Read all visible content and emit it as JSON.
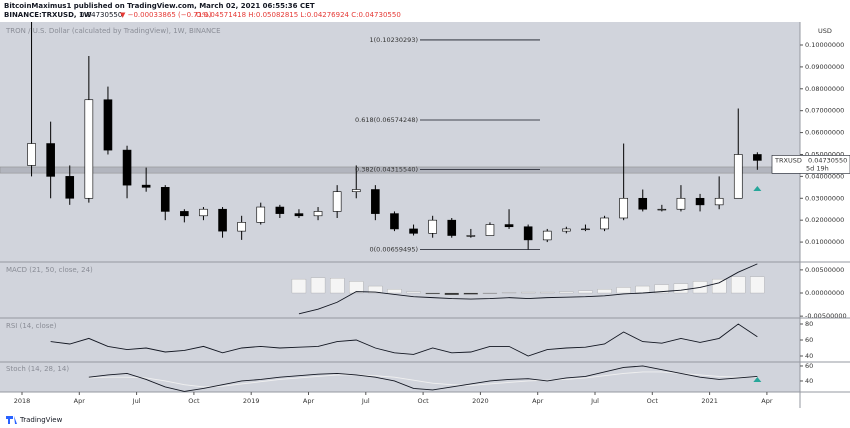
{
  "header": {
    "publisher": "BitcoinMaximus1 published on TradingView.com, March 02, 2021 06:55:36 CET",
    "symbol": "BINANCE:TRXUSD, 1W",
    "last": "0.04730550",
    "change": "▼ −0.00033865 (−0.71%)",
    "ohlc": "O:0.04571418 H:0.05082815 L:0.04276924 C:0.04730550",
    "brand": "TradingView"
  },
  "chart_data": [
    {
      "type": "candlestick",
      "title": "TRON / U.S. Dollar (calculated by TradingView), 1W, BINANCE",
      "y_unit": "USD",
      "x": [
        "2018-01",
        "2018-02",
        "2018-03",
        "2018-04",
        "2018-05",
        "2018-06",
        "2018-07",
        "2018-08",
        "2018-09",
        "2018-10",
        "2018-11",
        "2018-12",
        "2019-01",
        "2019-02",
        "2019-03",
        "2019-04",
        "2019-05",
        "2019-06",
        "2019-07",
        "2019-08",
        "2019-09",
        "2019-10",
        "2019-11",
        "2019-12",
        "2020-01",
        "2020-02",
        "2020-03",
        "2020-04",
        "2020-05",
        "2020-06",
        "2020-07",
        "2020-08",
        "2020-09",
        "2020-10",
        "2020-11",
        "2020-12",
        "2021-01",
        "2021-02",
        "2021-03"
      ],
      "open": [
        0.045,
        0.055,
        0.04,
        0.03,
        0.075,
        0.052,
        0.036,
        0.035,
        0.024,
        0.022,
        0.025,
        0.015,
        0.019,
        0.026,
        0.023,
        0.022,
        0.024,
        0.033,
        0.034,
        0.023,
        0.016,
        0.014,
        0.02,
        0.013,
        0.013,
        0.018,
        0.017,
        0.011,
        0.015,
        0.016,
        0.016,
        0.021,
        0.03,
        0.025,
        0.025,
        0.03,
        0.027,
        0.03,
        0.05
      ],
      "high": [
        0.3,
        0.065,
        0.045,
        0.095,
        0.081,
        0.054,
        0.044,
        0.036,
        0.025,
        0.026,
        0.026,
        0.022,
        0.028,
        0.027,
        0.025,
        0.026,
        0.036,
        0.045,
        0.036,
        0.024,
        0.018,
        0.022,
        0.021,
        0.016,
        0.019,
        0.025,
        0.018,
        0.016,
        0.017,
        0.018,
        0.022,
        0.055,
        0.034,
        0.027,
        0.036,
        0.032,
        0.04,
        0.071,
        0.051
      ],
      "low": [
        0.04,
        0.03,
        0.027,
        0.028,
        0.05,
        0.03,
        0.033,
        0.02,
        0.019,
        0.02,
        0.012,
        0.011,
        0.018,
        0.021,
        0.021,
        0.02,
        0.021,
        0.03,
        0.02,
        0.015,
        0.013,
        0.012,
        0.012,
        0.012,
        0.013,
        0.016,
        0.0066,
        0.01,
        0.014,
        0.015,
        0.015,
        0.02,
        0.024,
        0.024,
        0.024,
        0.024,
        0.025,
        0.03,
        0.043
      ],
      "close": [
        0.055,
        0.04,
        0.03,
        0.075,
        0.052,
        0.036,
        0.035,
        0.024,
        0.022,
        0.025,
        0.015,
        0.019,
        0.026,
        0.023,
        0.022,
        0.024,
        0.033,
        0.034,
        0.023,
        0.016,
        0.014,
        0.02,
        0.013,
        0.013,
        0.018,
        0.017,
        0.011,
        0.015,
        0.016,
        0.016,
        0.021,
        0.03,
        0.025,
        0.025,
        0.03,
        0.027,
        0.03,
        0.05,
        0.0473
      ],
      "up_color": "#ffffff",
      "down_color": "#000000",
      "ylim": [
        0.0009,
        0.1105
      ],
      "yticks": [
        {
          "value": 0.01,
          "label": "0.01000000"
        },
        {
          "value": 0.02,
          "label": "0.02000000"
        },
        {
          "value": 0.03,
          "label": "0.03000000"
        },
        {
          "value": 0.04,
          "label": "0.04000000"
        },
        {
          "value": 0.05,
          "label": "0.05000000"
        },
        {
          "value": 0.06,
          "label": "0.06000000"
        },
        {
          "value": 0.07,
          "label": "0.07000000"
        },
        {
          "value": 0.08,
          "label": "0.08000000"
        },
        {
          "value": 0.09,
          "label": "0.09000000"
        },
        {
          "value": 0.1,
          "label": "0.10000000"
        }
      ],
      "xticks": [
        {
          "value": "2018-01",
          "label": "2018"
        },
        {
          "value": "2018-04",
          "label": "Apr"
        },
        {
          "value": "2018-07",
          "label": "Jul"
        },
        {
          "value": "2018-10",
          "label": "Oct"
        },
        {
          "value": "2019-01",
          "label": "2019"
        },
        {
          "value": "2019-04",
          "label": "Apr"
        },
        {
          "value": "2019-07",
          "label": "Jul"
        },
        {
          "value": "2019-10",
          "label": "Oct"
        },
        {
          "value": "2020-01",
          "label": "2020"
        },
        {
          "value": "2020-04",
          "label": "Apr"
        },
        {
          "value": "2020-07",
          "label": "Jul"
        },
        {
          "value": "2020-10",
          "label": "Oct"
        },
        {
          "value": "2021-01",
          "label": "2021"
        },
        {
          "value": "2021-04",
          "label": "Apr"
        }
      ],
      "fib_levels": [
        {
          "value": 0.10230293,
          "label": "1(0.10230293)"
        },
        {
          "value": 0.06574248,
          "label": "0.618(0.06574248)"
        },
        {
          "value": 0.0431554,
          "label": "0.382(0.04315540)"
        },
        {
          "value": 0.00659495,
          "label": "0(0.00659495)"
        }
      ],
      "support_zone": [
        0.0415,
        0.0443
      ],
      "last_price_label": "TRXUSD",
      "last_price": {
        "value": 0.0473055,
        "label": "0.04730550"
      },
      "countdown": "5d 19h"
    },
    {
      "type": "macd",
      "title": "MACD (21, 50, close, 24)",
      "histogram": [
        null,
        null,
        null,
        null,
        null,
        null,
        null,
        null,
        null,
        null,
        null,
        null,
        null,
        null,
        0.003,
        0.0033,
        0.0032,
        0.0025,
        0.0015,
        0.0008,
        0.0003,
        -0.0002,
        -0.0004,
        -0.0003,
        -0.0001,
        0.0001,
        0.0002,
        0.0002,
        0.0003,
        0.0005,
        0.0008,
        0.0012,
        0.0015,
        0.0018,
        0.002,
        0.0025,
        0.003,
        0.0035,
        0.0035
      ],
      "macd_line": [
        null,
        null,
        null,
        null,
        null,
        null,
        null,
        null,
        null,
        null,
        null,
        null,
        null,
        null,
        -0.0045,
        -0.0035,
        -0.002,
        0.0003,
        0.0002,
        -0.0003,
        -0.0008,
        -0.001,
        -0.0012,
        -0.0013,
        -0.0012,
        -0.001,
        -0.0012,
        -0.001,
        -0.0009,
        -0.0008,
        -0.0006,
        -0.0002,
        0.0,
        0.0003,
        0.0006,
        0.0012,
        0.0022,
        0.0045,
        0.0063
      ],
      "ylim": [
        -0.0054,
        0.0067
      ],
      "yticks": [
        {
          "value": 0.005,
          "label": "0.00500000"
        },
        {
          "value": 0,
          "label": "0.00000000"
        },
        {
          "value": -0.005,
          "label": "-0.00500000"
        }
      ]
    },
    {
      "type": "rsi",
      "title": "RSI (14, close)",
      "values": [
        null,
        58,
        55,
        62,
        52,
        48,
        50,
        45,
        47,
        52,
        44,
        50,
        52,
        50,
        51,
        52,
        58,
        60,
        50,
        44,
        42,
        50,
        44,
        45,
        52,
        52,
        40,
        48,
        50,
        51,
        55,
        70,
        58,
        56,
        62,
        57,
        62,
        80,
        64
      ],
      "ylim": [
        32.5,
        87.5
      ],
      "yticks": [
        40,
        60,
        80
      ]
    },
    {
      "type": "stoch",
      "title": "Stoch (14, 28, 14)",
      "k": [
        null,
        null,
        null,
        45,
        48,
        50,
        42,
        32,
        26,
        30,
        35,
        40,
        42,
        45,
        47,
        49,
        50,
        48,
        45,
        40,
        30,
        28,
        32,
        36,
        40,
        42,
        43,
        40,
        44,
        46,
        52,
        58,
        60,
        55,
        50,
        45,
        42,
        44,
        46
      ],
      "d": [
        null,
        null,
        null,
        44,
        45,
        45,
        44,
        40,
        35,
        32,
        33,
        36,
        39,
        42,
        44,
        46,
        48,
        48,
        47,
        45,
        41,
        37,
        35,
        34,
        36,
        38,
        40,
        41,
        42,
        44,
        47,
        50,
        52,
        52,
        50,
        48,
        46,
        45,
        45
      ],
      "ylim": [
        25.3,
        65.3
      ],
      "yticks": [
        40,
        60
      ]
    }
  ]
}
